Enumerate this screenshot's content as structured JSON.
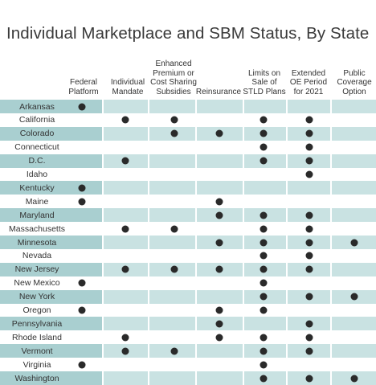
{
  "chart_data": {
    "type": "table",
    "title": "Individual Marketplace and SBM Status, By State",
    "columns": [
      "Federal\nPlatform",
      "Individual\nMandate",
      "Enhanced\nPremium or\nCost Sharing\nSubsidies",
      "Reinsurance",
      "Limits on\nSale of\nSTLD Plans",
      "Extended\nOE Period\nfor 2021",
      "Public\nCoverage\nOption"
    ],
    "rows": [
      {
        "state": "Arkansas",
        "marks": [
          1,
          0,
          0,
          0,
          0,
          0,
          0
        ]
      },
      {
        "state": "California",
        "marks": [
          0,
          1,
          1,
          0,
          1,
          1,
          0
        ]
      },
      {
        "state": "Colorado",
        "marks": [
          0,
          0,
          1,
          1,
          1,
          1,
          0
        ]
      },
      {
        "state": "Connecticut",
        "marks": [
          0,
          0,
          0,
          0,
          1,
          1,
          0
        ]
      },
      {
        "state": "D.C.",
        "marks": [
          0,
          1,
          0,
          0,
          1,
          1,
          0
        ]
      },
      {
        "state": "Idaho",
        "marks": [
          0,
          0,
          0,
          0,
          0,
          1,
          0
        ]
      },
      {
        "state": "Kentucky",
        "marks": [
          1,
          0,
          0,
          0,
          0,
          0,
          0
        ]
      },
      {
        "state": "Maine",
        "marks": [
          1,
          0,
          0,
          1,
          0,
          0,
          0
        ]
      },
      {
        "state": "Maryland",
        "marks": [
          0,
          0,
          0,
          1,
          1,
          1,
          0
        ]
      },
      {
        "state": "Massachusetts",
        "marks": [
          0,
          1,
          1,
          0,
          1,
          1,
          0
        ]
      },
      {
        "state": "Minnesota",
        "marks": [
          0,
          0,
          0,
          1,
          1,
          1,
          1
        ]
      },
      {
        "state": "Nevada",
        "marks": [
          0,
          0,
          0,
          0,
          1,
          1,
          0
        ]
      },
      {
        "state": "New Jersey",
        "marks": [
          0,
          1,
          1,
          1,
          1,
          1,
          0
        ]
      },
      {
        "state": "New Mexico",
        "marks": [
          1,
          0,
          0,
          0,
          1,
          0,
          0
        ]
      },
      {
        "state": "New York",
        "marks": [
          0,
          0,
          0,
          0,
          1,
          1,
          1
        ]
      },
      {
        "state": "Oregon",
        "marks": [
          1,
          0,
          0,
          1,
          1,
          0,
          0
        ]
      },
      {
        "state": "Pennsylvania",
        "marks": [
          0,
          0,
          0,
          1,
          0,
          1,
          0
        ]
      },
      {
        "state": "Rhode Island",
        "marks": [
          0,
          1,
          0,
          1,
          1,
          1,
          0
        ]
      },
      {
        "state": "Vermont",
        "marks": [
          0,
          1,
          1,
          0,
          1,
          1,
          0
        ]
      },
      {
        "state": "Virginia",
        "marks": [
          1,
          0,
          0,
          0,
          1,
          0,
          0
        ]
      },
      {
        "state": "Washington",
        "marks": [
          0,
          0,
          0,
          0,
          1,
          1,
          1
        ]
      }
    ],
    "colors": {
      "state_band": "#a9cfd0",
      "cell_band": "#c9e2e2",
      "dot": "#2a2a2a"
    }
  }
}
